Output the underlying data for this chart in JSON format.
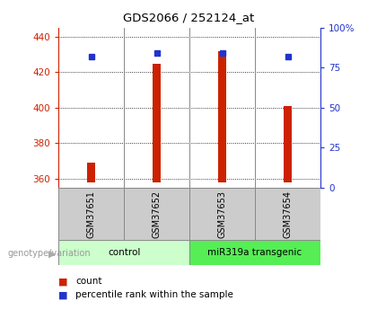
{
  "title": "GDS2066 / 252124_at",
  "samples": [
    "GSM37651",
    "GSM37652",
    "GSM37653",
    "GSM37654"
  ],
  "count_values": [
    369,
    425,
    432,
    401
  ],
  "percentile_values": [
    82,
    84,
    84,
    82
  ],
  "ylim_left": [
    355,
    445
  ],
  "ylim_right": [
    0,
    100
  ],
  "yticks_left": [
    360,
    380,
    400,
    420,
    440
  ],
  "yticks_right": [
    0,
    25,
    50,
    75,
    100
  ],
  "ytick_labels_right": [
    "0",
    "25",
    "50",
    "75",
    "100%"
  ],
  "bar_color": "#cc2200",
  "dot_color": "#2233cc",
  "bg_color": "#ffffff",
  "groups": [
    {
      "label": "control",
      "samples": [
        0,
        1
      ],
      "color": "#ccffcc"
    },
    {
      "label": "miR319a transgenic",
      "samples": [
        2,
        3
      ],
      "color": "#55ee55"
    }
  ],
  "sample_row_color": "#cccccc",
  "left_axis_color": "#cc2200",
  "right_axis_color": "#2233cc",
  "bar_width": 0.12,
  "base_value": 358
}
